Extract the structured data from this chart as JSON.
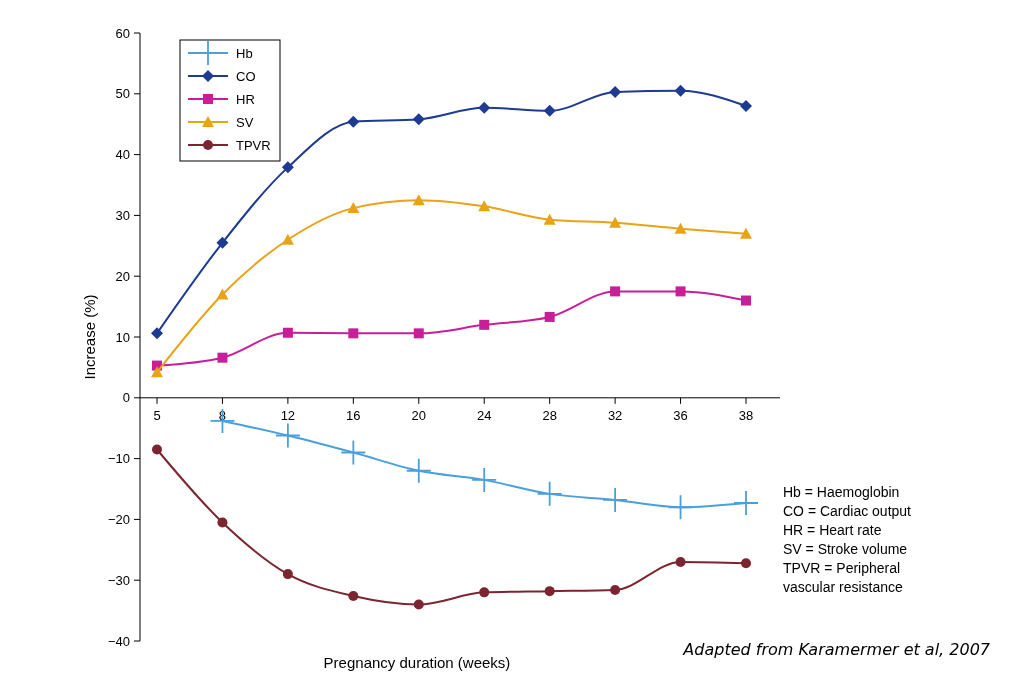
{
  "chart_data": {
    "type": "line",
    "xlabel": "Pregnancy duration (weeks)",
    "ylabel": "Increase (%)",
    "categories": [
      "5",
      "8",
      "12",
      "16",
      "20",
      "24",
      "28",
      "32",
      "36",
      "38"
    ],
    "ylim": [
      -40,
      60
    ],
    "yticks": [
      -40,
      -30,
      -20,
      -10,
      0,
      10,
      20,
      30,
      40,
      50,
      60
    ],
    "legend": "top left",
    "grid": false,
    "line_style": "solid",
    "series": [
      {
        "name": "Hb",
        "color": "#4a9fdc",
        "marker": "cross",
        "values": [
          null,
          -3.8,
          -6.2,
          -9,
          -12,
          -13.5,
          -15.8,
          -16.8,
          -18,
          -17.3
        ]
      },
      {
        "name": "CO",
        "color": "#1f3a93",
        "marker": "diamond",
        "values": [
          10.6,
          25.5,
          37.9,
          45.4,
          45.8,
          47.7,
          47.2,
          50.3,
          50.5,
          48
        ]
      },
      {
        "name": "HR",
        "color": "#c81f99",
        "marker": "square",
        "values": [
          5.3,
          6.6,
          10.7,
          10.6,
          10.6,
          12,
          13.3,
          17.5,
          17.5,
          16
        ]
      },
      {
        "name": "SV",
        "color": "#e8a317",
        "marker": "triangle",
        "values": [
          4.2,
          17,
          26,
          31.2,
          32.5,
          31.5,
          29.3,
          28.8,
          27.8,
          27
        ]
      },
      {
        "name": "TPVR",
        "color": "#7b2530",
        "marker": "circle",
        "values": [
          -8.5,
          -20.5,
          -29,
          -32.6,
          -34,
          -32,
          -31.8,
          -31.6,
          -27,
          -27.2
        ]
      }
    ],
    "annotations": [
      "Hb = Haemoglobin",
      "CO = Cardiac output",
      "HR = Heart rate",
      "SV = Stroke volume",
      "TPVR = Peripheral",
      "vascular resistance",
      "Adapted from Karamermer et al, 2007"
    ]
  }
}
